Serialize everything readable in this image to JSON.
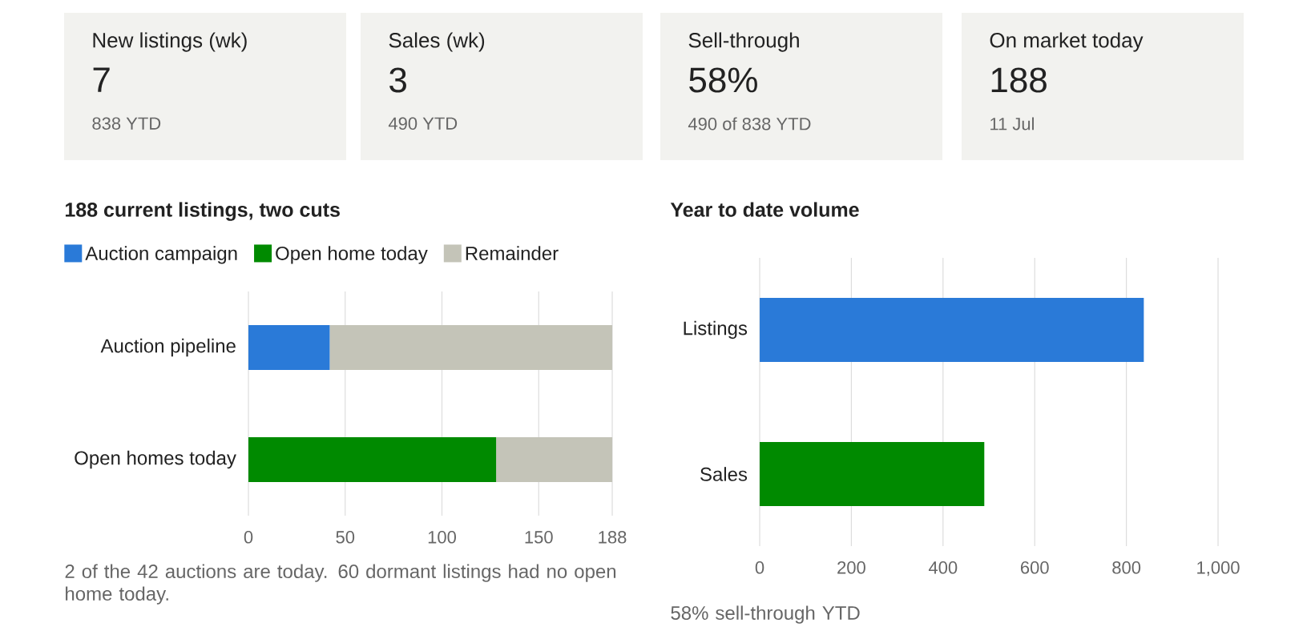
{
  "chart_data": [
    {
      "type": "other",
      "annotations": [
        "New listings (wk)",
        "7",
        "838 YTD",
        "Sales (wk)",
        "3",
        "490 YTD",
        "Sell-through",
        "58%",
        "490 of 838 YTD",
        "On market today",
        "188",
        "11 Jul"
      ]
    },
    {
      "type": "bar",
      "orientation": "horizontal",
      "stacked": true,
      "title": "188 current listings, two cuts",
      "categories": [
        "Auction pipeline",
        "Open homes today"
      ],
      "series": [
        {
          "name": "Auction campaign",
          "color": "#2a7ad8",
          "values": [
            42,
            null
          ]
        },
        {
          "name": "Open home today",
          "color": "#008a00",
          "values": [
            null,
            128
          ]
        },
        {
          "name": "Remainder",
          "color": "#c4c4b8",
          "values": [
            146,
            60
          ]
        }
      ],
      "xlim": [
        0,
        188
      ],
      "xticks": [
        0,
        50,
        100,
        150,
        188
      ],
      "grid": "x",
      "legend": "top left",
      "annotations": [
        "2 of the 42 auctions are today. 60 dormant listings had no open home today."
      ]
    },
    {
      "type": "bar",
      "orientation": "horizontal",
      "title": "Year to date volume",
      "categories": [
        "Listings",
        "Sales"
      ],
      "values": [
        838,
        490
      ],
      "colors": [
        "#2a7ad8",
        "#008a00"
      ],
      "xlim": [
        0,
        1000
      ],
      "xticks": [
        0,
        200,
        400,
        600,
        800,
        {
          "value": 1000,
          "label": "1,000"
        }
      ],
      "grid": "x",
      "annotations": [
        "58% sell-through YTD"
      ]
    }
  ]
}
